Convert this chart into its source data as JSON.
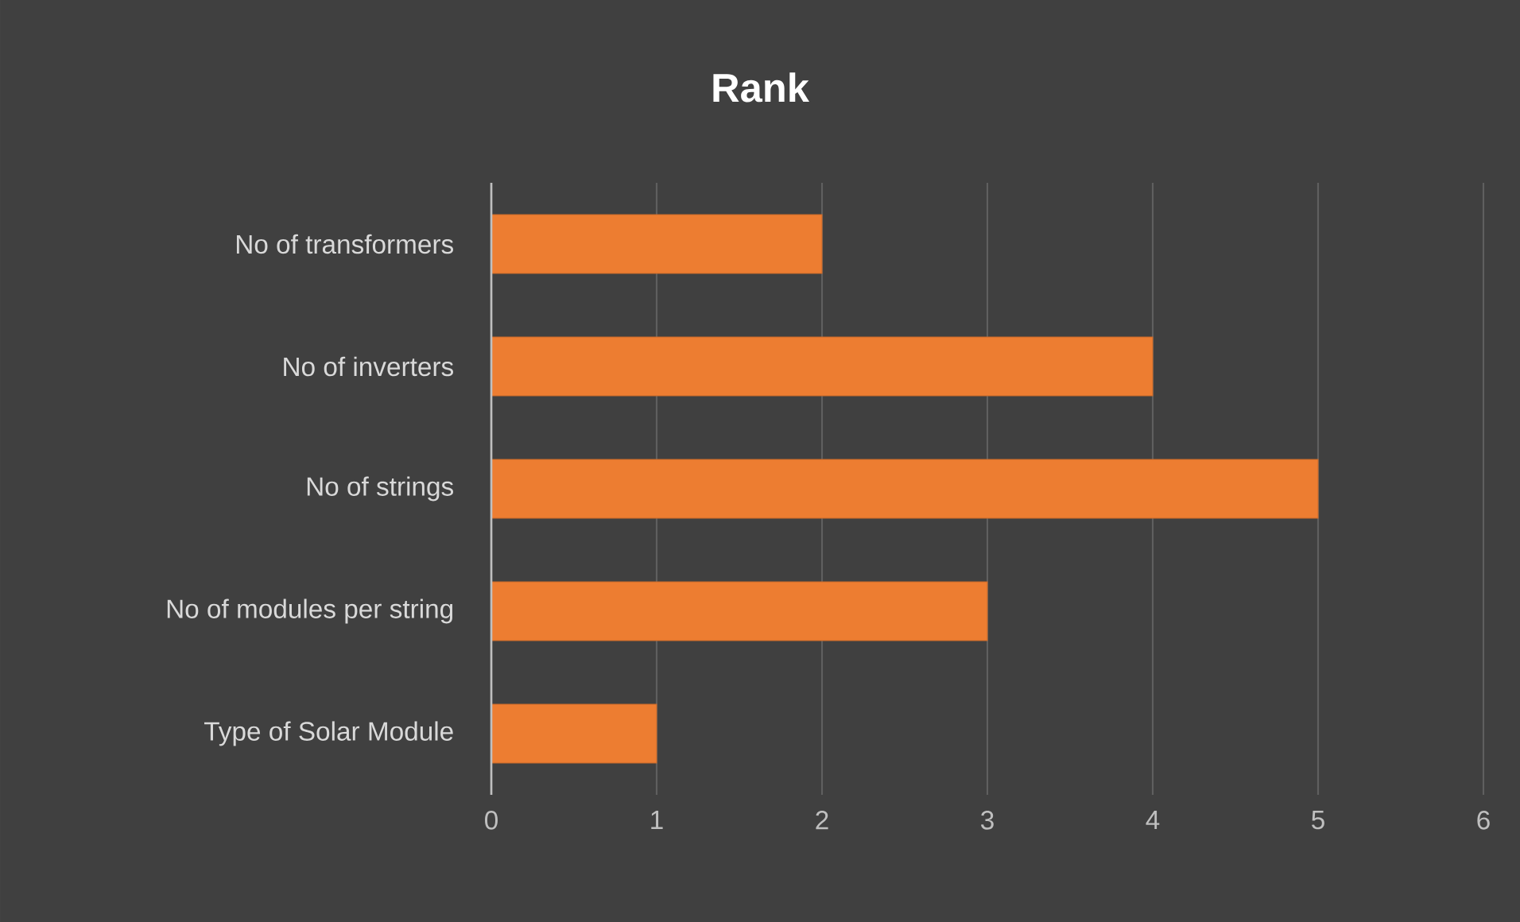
{
  "chart_data": {
    "type": "bar",
    "orientation": "horizontal",
    "title": "Rank",
    "categories": [
      "No of transformers",
      "No of inverters",
      "No of strings",
      "No of modules per string",
      "Type of Solar Module"
    ],
    "values": [
      2,
      4,
      5,
      3,
      1
    ],
    "color": "#ed7d31",
    "xlim": [
      0,
      6
    ],
    "xticks": [
      0,
      1,
      2,
      3,
      4,
      5,
      6
    ],
    "grid": "x"
  }
}
